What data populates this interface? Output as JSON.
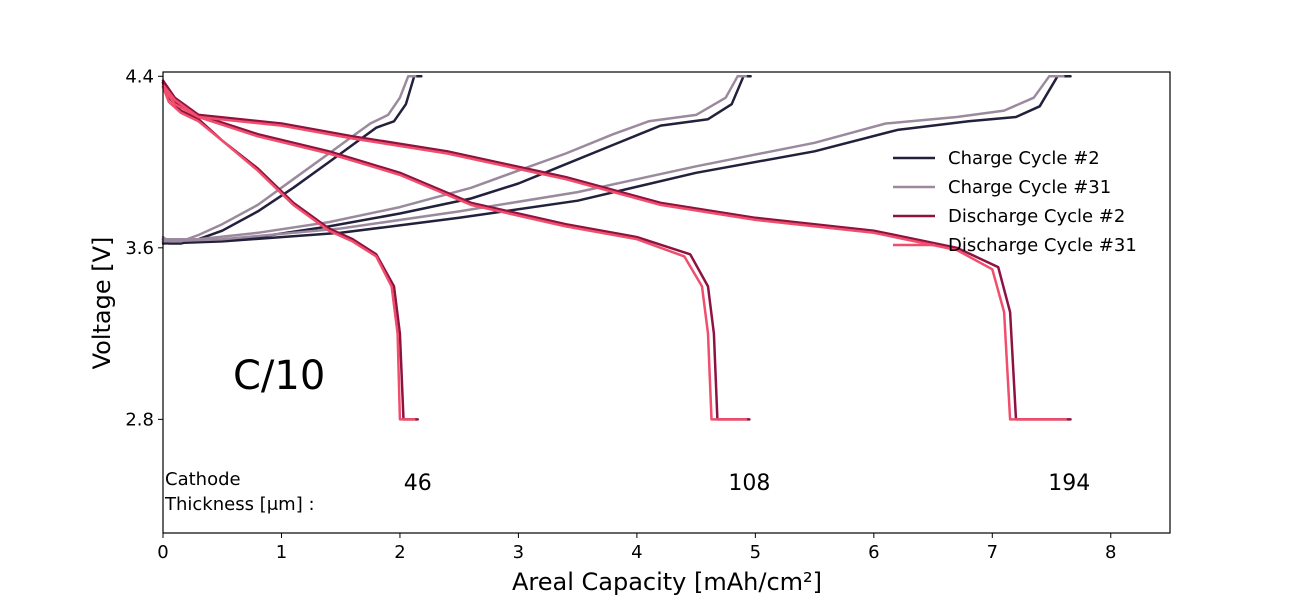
{
  "chart_data": {
    "type": "line",
    "xlabel": "Areal Capacity [mAh/cm²]",
    "ylabel": "Voltage [V]",
    "xlim": [
      0,
      8.5
    ],
    "ylim": [
      2.27,
      4.42
    ],
    "x_ticks": [
      "0",
      "1",
      "2",
      "3",
      "4",
      "5",
      "6",
      "7",
      "8"
    ],
    "y_ticks": [
      "2.8",
      "3.6",
      "4.4"
    ],
    "grid": false,
    "legend_position": "upper-right",
    "rate_label": "C/10",
    "cathode_label_line1": "Cathode",
    "cathode_label_line2": "Thickness [μm] :",
    "thickness_labels": [
      {
        "text": "46",
        "x": 2.15
      },
      {
        "text": "108",
        "x": 4.95
      },
      {
        "text": "194",
        "x": 7.65
      }
    ],
    "series": [
      {
        "name": "Charge Cycle #2",
        "color": "#22203c",
        "curves": [
          [
            [
              0.0,
              3.64
            ],
            [
              0.05,
              3.62
            ],
            [
              0.15,
              3.62
            ],
            [
              0.3,
              3.64
            ],
            [
              0.5,
              3.68
            ],
            [
              0.8,
              3.77
            ],
            [
              1.1,
              3.88
            ],
            [
              1.4,
              4.0
            ],
            [
              1.6,
              4.08
            ],
            [
              1.8,
              4.16
            ],
            [
              1.95,
              4.19
            ],
            [
              2.05,
              4.27
            ],
            [
              2.12,
              4.4
            ],
            [
              2.18,
              4.4
            ]
          ],
          [
            [
              0.0,
              3.63
            ],
            [
              0.3,
              3.63
            ],
            [
              0.8,
              3.65
            ],
            [
              1.4,
              3.7
            ],
            [
              2.0,
              3.76
            ],
            [
              2.6,
              3.83
            ],
            [
              3.0,
              3.9
            ],
            [
              3.4,
              3.99
            ],
            [
              3.8,
              4.08
            ],
            [
              4.2,
              4.17
            ],
            [
              4.6,
              4.2
            ],
            [
              4.8,
              4.27
            ],
            [
              4.9,
              4.4
            ],
            [
              4.96,
              4.4
            ]
          ],
          [
            [
              0.0,
              3.62
            ],
            [
              0.5,
              3.63
            ],
            [
              1.5,
              3.67
            ],
            [
              2.5,
              3.74
            ],
            [
              3.5,
              3.82
            ],
            [
              4.5,
              3.95
            ],
            [
              5.5,
              4.05
            ],
            [
              6.2,
              4.15
            ],
            [
              6.8,
              4.19
            ],
            [
              7.2,
              4.21
            ],
            [
              7.4,
              4.26
            ],
            [
              7.55,
              4.4
            ],
            [
              7.66,
              4.4
            ]
          ]
        ]
      },
      {
        "name": "Charge Cycle #31",
        "color": "#9b8a9d",
        "curves": [
          [
            [
              0.0,
              3.65
            ],
            [
              0.05,
              3.63
            ],
            [
              0.15,
              3.63
            ],
            [
              0.3,
              3.66
            ],
            [
              0.5,
              3.71
            ],
            [
              0.8,
              3.8
            ],
            [
              1.1,
              3.92
            ],
            [
              1.4,
              4.04
            ],
            [
              1.6,
              4.12
            ],
            [
              1.75,
              4.18
            ],
            [
              1.9,
              4.22
            ],
            [
              2.0,
              4.3
            ],
            [
              2.07,
              4.4
            ],
            [
              2.13,
              4.4
            ]
          ],
          [
            [
              0.0,
              3.64
            ],
            [
              0.3,
              3.64
            ],
            [
              0.8,
              3.67
            ],
            [
              1.4,
              3.72
            ],
            [
              2.0,
              3.79
            ],
            [
              2.6,
              3.88
            ],
            [
              3.0,
              3.96
            ],
            [
              3.4,
              4.04
            ],
            [
              3.8,
              4.13
            ],
            [
              4.1,
              4.19
            ],
            [
              4.5,
              4.22
            ],
            [
              4.75,
              4.3
            ],
            [
              4.85,
              4.4
            ],
            [
              4.92,
              4.4
            ]
          ],
          [
            [
              0.0,
              3.63
            ],
            [
              0.5,
              3.64
            ],
            [
              1.5,
              3.69
            ],
            [
              2.5,
              3.77
            ],
            [
              3.5,
              3.86
            ],
            [
              4.5,
              3.98
            ],
            [
              5.5,
              4.09
            ],
            [
              6.1,
              4.18
            ],
            [
              6.7,
              4.21
            ],
            [
              7.1,
              4.24
            ],
            [
              7.35,
              4.3
            ],
            [
              7.48,
              4.4
            ],
            [
              7.6,
              4.4
            ]
          ]
        ]
      },
      {
        "name": "Discharge Cycle #2",
        "color": "#8e1240",
        "curves": [
          [
            [
              0.0,
              4.37
            ],
            [
              0.05,
              4.3
            ],
            [
              0.15,
              4.24
            ],
            [
              0.3,
              4.2
            ],
            [
              0.5,
              4.1
            ],
            [
              0.8,
              3.97
            ],
            [
              1.1,
              3.81
            ],
            [
              1.4,
              3.69
            ],
            [
              1.6,
              3.64
            ],
            [
              1.8,
              3.57
            ],
            [
              1.95,
              3.42
            ],
            [
              2.0,
              3.2
            ],
            [
              2.03,
              2.8
            ],
            [
              2.15,
              2.8
            ]
          ],
          [
            [
              0.0,
              4.37
            ],
            [
              0.1,
              4.28
            ],
            [
              0.3,
              4.22
            ],
            [
              0.8,
              4.13
            ],
            [
              1.4,
              4.05
            ],
            [
              2.0,
              3.95
            ],
            [
              2.6,
              3.81
            ],
            [
              3.4,
              3.71
            ],
            [
              4.0,
              3.65
            ],
            [
              4.45,
              3.57
            ],
            [
              4.6,
              3.42
            ],
            [
              4.65,
              3.2
            ],
            [
              4.68,
              2.8
            ],
            [
              4.95,
              2.8
            ]
          ],
          [
            [
              0.0,
              4.38
            ],
            [
              0.1,
              4.3
            ],
            [
              0.3,
              4.22
            ],
            [
              1.0,
              4.18
            ],
            [
              1.6,
              4.12
            ],
            [
              2.4,
              4.05
            ],
            [
              3.4,
              3.93
            ],
            [
              4.2,
              3.81
            ],
            [
              5.0,
              3.74
            ],
            [
              6.0,
              3.68
            ],
            [
              6.7,
              3.6
            ],
            [
              7.05,
              3.51
            ],
            [
              7.15,
              3.3
            ],
            [
              7.2,
              2.8
            ],
            [
              7.66,
              2.8
            ]
          ]
        ]
      },
      {
        "name": "Discharge Cycle #31",
        "color": "#f04e6c",
        "curves": [
          [
            [
              0.0,
              4.35
            ],
            [
              0.05,
              4.28
            ],
            [
              0.15,
              4.23
            ],
            [
              0.3,
              4.19
            ],
            [
              0.5,
              4.1
            ],
            [
              0.8,
              3.96
            ],
            [
              1.1,
              3.8
            ],
            [
              1.4,
              3.68
            ],
            [
              1.6,
              3.63
            ],
            [
              1.8,
              3.56
            ],
            [
              1.93,
              3.42
            ],
            [
              1.98,
              3.2
            ],
            [
              2.0,
              2.8
            ],
            [
              2.12,
              2.8
            ]
          ],
          [
            [
              0.0,
              4.35
            ],
            [
              0.1,
              4.27
            ],
            [
              0.3,
              4.21
            ],
            [
              0.8,
              4.12
            ],
            [
              1.4,
              4.04
            ],
            [
              2.0,
              3.94
            ],
            [
              2.6,
              3.8
            ],
            [
              3.4,
              3.7
            ],
            [
              4.0,
              3.64
            ],
            [
              4.4,
              3.56
            ],
            [
              4.55,
              3.42
            ],
            [
              4.6,
              3.2
            ],
            [
              4.63,
              2.8
            ],
            [
              4.92,
              2.8
            ]
          ],
          [
            [
              0.0,
              4.36
            ],
            [
              0.1,
              4.29
            ],
            [
              0.3,
              4.21
            ],
            [
              1.0,
              4.17
            ],
            [
              1.6,
              4.11
            ],
            [
              2.4,
              4.04
            ],
            [
              3.4,
              3.92
            ],
            [
              4.2,
              3.8
            ],
            [
              5.0,
              3.73
            ],
            [
              6.0,
              3.67
            ],
            [
              6.7,
              3.59
            ],
            [
              7.0,
              3.5
            ],
            [
              7.1,
              3.3
            ],
            [
              7.15,
              2.8
            ],
            [
              7.62,
              2.8
            ]
          ]
        ]
      }
    ]
  }
}
